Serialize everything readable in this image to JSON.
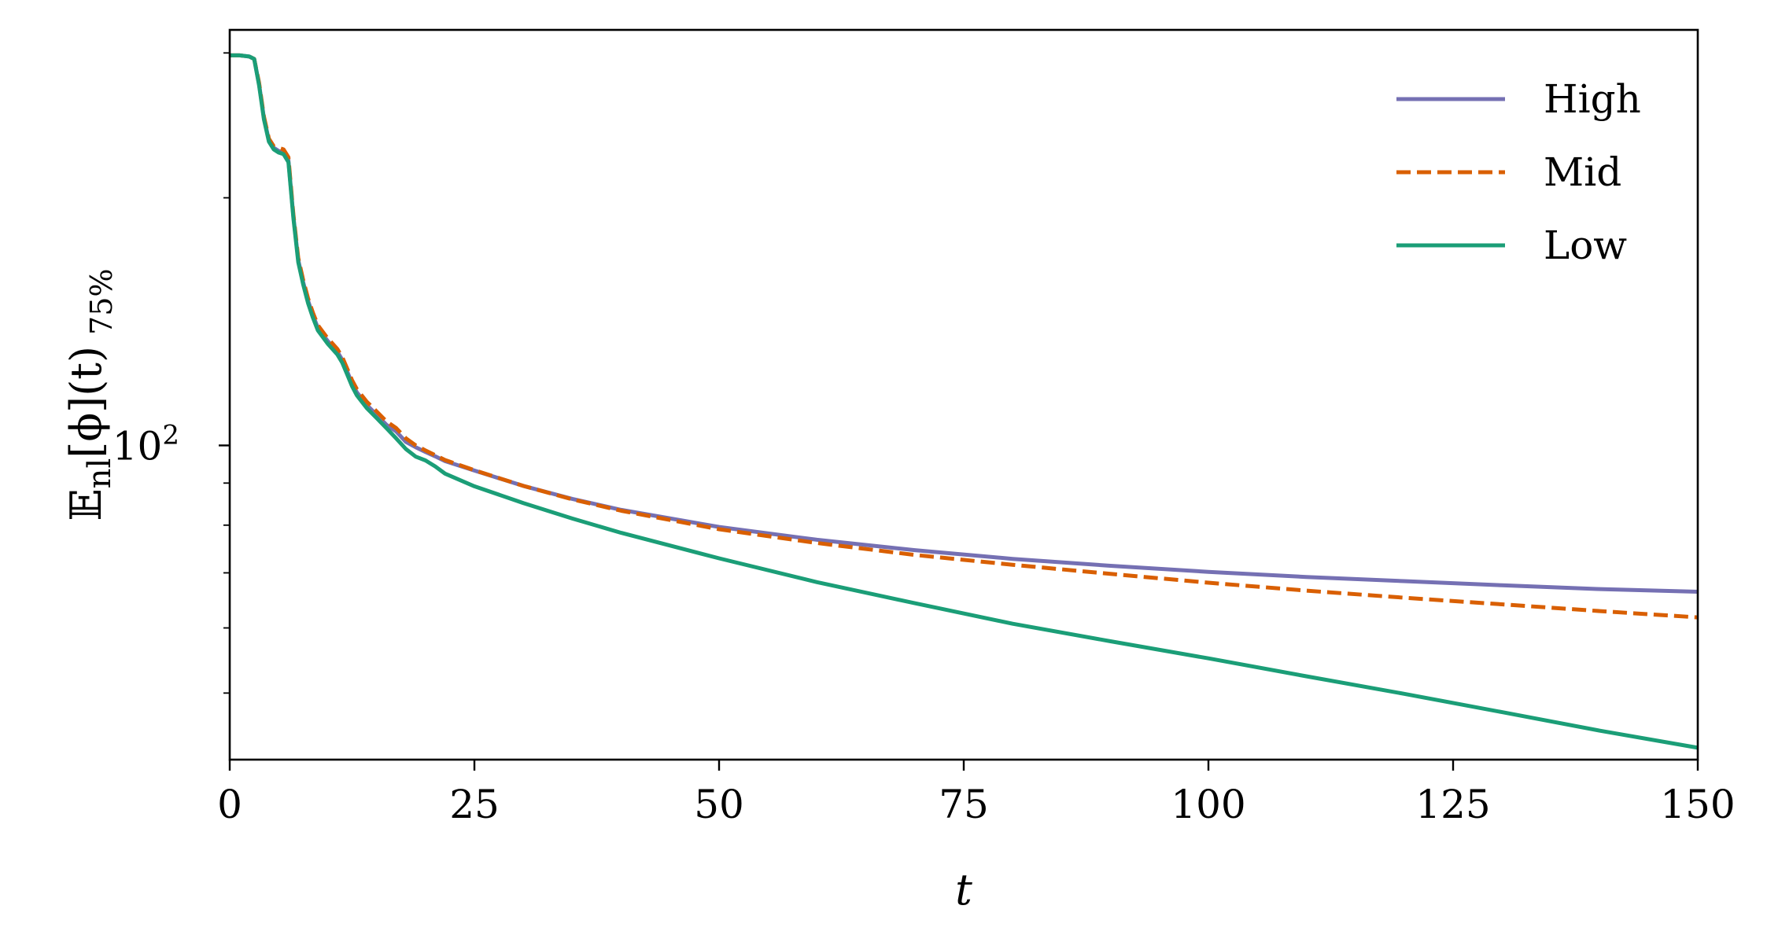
{
  "chart_data": {
    "type": "line",
    "xlabel": "t",
    "ylabel": "𝔼nl[ϕ](t) 75%",
    "ylabel_main": "𝔼",
    "ylabel_sub": "nl",
    "ylabel_rest": "[ϕ](t)",
    "ylabel_suffix": "75%",
    "xlim": [
      0,
      150
    ],
    "ylim": [
      41.5,
      320
    ],
    "yscale": "log",
    "xticks": [
      "0",
      "25",
      "50",
      "75",
      "100",
      "125",
      "150"
    ],
    "xtick_values": [
      0,
      25,
      50,
      75,
      100,
      125,
      150
    ],
    "ytick_major": {
      "value": 100,
      "base": "10",
      "exponent": "2"
    },
    "ytick_minor_values": [
      50,
      60,
      70,
      80,
      90,
      200,
      300
    ],
    "grid": false,
    "legend_position": "top-right",
    "x": [
      0,
      1,
      2,
      2.5,
      3,
      3.5,
      4,
      4.5,
      5,
      5.5,
      6,
      6.5,
      7,
      7.5,
      8,
      8.5,
      9,
      10,
      11,
      11.5,
      12,
      12.5,
      13,
      14,
      15,
      16,
      17,
      18,
      19,
      20,
      21,
      22,
      25,
      30,
      35,
      40,
      50,
      60,
      70,
      80,
      90,
      100,
      110,
      120,
      130,
      140,
      150
    ],
    "series": [
      {
        "name": "High",
        "color": "#7570b3",
        "dash": "solid",
        "values": [
          298,
          298,
          297,
          295,
          275,
          250,
          235,
          230,
          228,
          227,
          222,
          190,
          168,
          158,
          150,
          144,
          139,
          134,
          130,
          127,
          123,
          119,
          116,
          112,
          109,
          106,
          104,
          101,
          99.5,
          98.2,
          97,
          95.7,
          93.2,
          89.3,
          86.1,
          83.5,
          79.6,
          76.8,
          74.6,
          72.8,
          71.4,
          70.2,
          69.2,
          68.4,
          67.6,
          66.9,
          66.4
        ]
      },
      {
        "name": "Mid",
        "color": "#d95f02",
        "dash": "dashed",
        "values": [
          298,
          298,
          297,
          295,
          276,
          251,
          236,
          231,
          230,
          229,
          224,
          191,
          169,
          159,
          151,
          145,
          140,
          135,
          131,
          128,
          124,
          120,
          117,
          113,
          110,
          107,
          105,
          102,
          100,
          98.6,
          97.3,
          96,
          93.3,
          89.3,
          86,
          83.3,
          79.1,
          76.1,
          73.6,
          71.6,
          69.8,
          68.1,
          66.6,
          65.3,
          64.1,
          62.9,
          61.8
        ]
      },
      {
        "name": "Low",
        "color": "#1b9e77",
        "dash": "solid",
        "values": [
          298,
          298,
          297,
          295,
          274,
          249,
          234,
          229,
          227,
          226,
          221,
          189,
          167,
          157,
          149,
          143,
          138,
          133,
          129,
          126,
          122,
          118,
          115,
          111,
          108,
          105,
          102,
          99,
          96.9,
          95.9,
          94.3,
          92.4,
          89.2,
          85.1,
          81.5,
          78.3,
          72.9,
          68.2,
          64.3,
          60.7,
          57.8,
          55.1,
          52.4,
          49.9,
          47.4,
          45,
          42.9
        ]
      }
    ]
  }
}
